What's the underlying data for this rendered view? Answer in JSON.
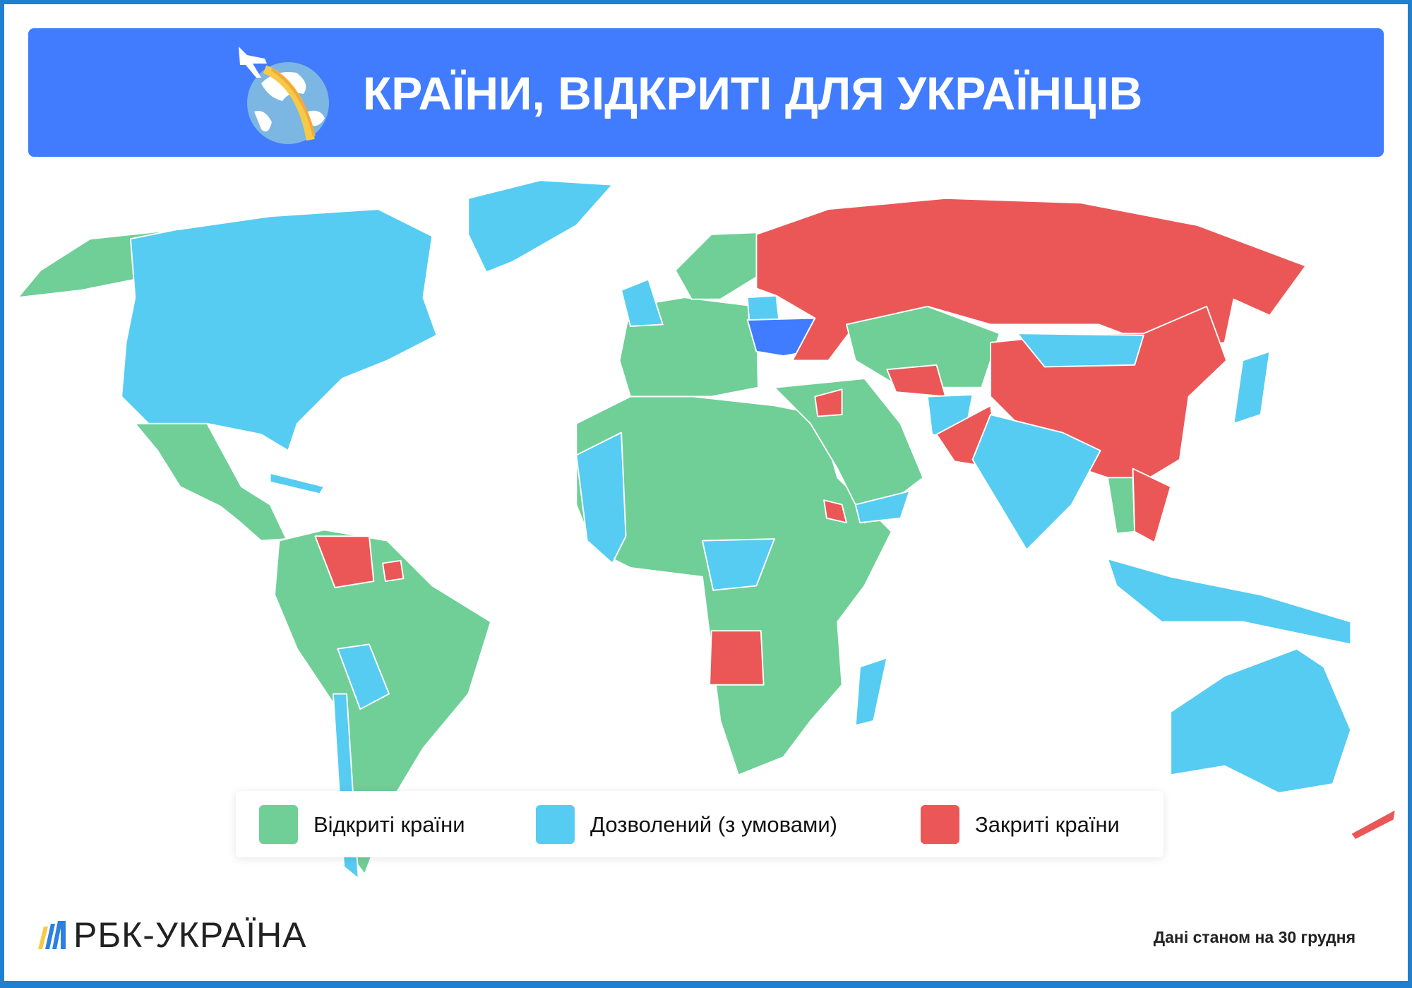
{
  "header": {
    "title": "КРАЇНИ, ВІДКРИТІ ДЛЯ УКРАЇНЦІВ",
    "icon": "globe-airplane-icon",
    "background_color": "#417cff"
  },
  "legend": {
    "items": [
      {
        "label": "Відкриті країни",
        "color": "#6fcf97"
      },
      {
        "label": "Дозволений (з умовами)",
        "color": "#56ccf2"
      },
      {
        "label": "Закриті країни",
        "color": "#eb5757"
      }
    ]
  },
  "map": {
    "highlight_color": "#3f7cff"
  },
  "footer": {
    "logo": "РБК-УКРАЇНА",
    "date_note": "Дані станом на 30 грудня"
  }
}
